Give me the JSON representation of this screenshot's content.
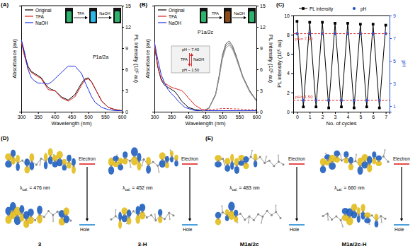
{
  "chart_data": [
    {
      "type": "line",
      "panel_label": "(A)",
      "sample_label": "P1a/2a",
      "x_label": "Wavelength (nm)",
      "y_label": "Absorbance (au)",
      "y2_label": "PL Intensity (10⁵ au)",
      "xlim": [
        300,
        600
      ],
      "xticks": [
        300,
        350,
        400,
        450,
        500,
        550,
        600
      ],
      "ylim": [
        0,
        1
      ],
      "yticks": [],
      "y2lim": [
        0,
        15
      ],
      "y2ticks": [
        0,
        3,
        6,
        9,
        12,
        15
      ],
      "legend": "upper-left",
      "inset": {
        "steps": [
          "TFA",
          "NaOH"
        ],
        "colors": [
          "#2db36b",
          "#2bb8e6",
          "#2db36b"
        ]
      },
      "series": [
        {
          "name": "Original",
          "color": "#000000",
          "x": [
            300,
            310,
            320,
            330,
            340,
            350,
            360,
            370,
            380,
            390,
            400,
            420,
            440,
            460,
            480,
            490,
            500,
            510,
            520,
            540,
            560,
            580,
            600
          ],
          "values": [
            0.68,
            0.54,
            0.43,
            0.38,
            0.36,
            0.34,
            0.32,
            0.27,
            0.23,
            0.21,
            0.2,
            0.14,
            0.11,
            0.16,
            0.27,
            0.31,
            0.32,
            0.28,
            0.22,
            0.1,
            0.04,
            0.02,
            0.01
          ]
        },
        {
          "name": "TFA",
          "color": "#e02020",
          "x": [
            300,
            310,
            320,
            330,
            340,
            350,
            360,
            370,
            380,
            390,
            400,
            420,
            440,
            460,
            480,
            490,
            500,
            510,
            520,
            540,
            560,
            580,
            600
          ],
          "values": [
            0.66,
            0.52,
            0.41,
            0.37,
            0.35,
            0.33,
            0.31,
            0.26,
            0.21,
            0.2,
            0.2,
            0.13,
            0.1,
            0.14,
            0.25,
            0.3,
            0.31,
            0.28,
            0.22,
            0.1,
            0.04,
            0.02,
            0.01
          ]
        },
        {
          "name": "NaOH",
          "color": "#2030e0",
          "x": [
            300,
            310,
            320,
            330,
            340,
            350,
            360,
            370,
            380,
            390,
            400,
            420,
            440,
            460,
            480,
            490,
            500,
            510,
            520,
            540,
            560,
            580,
            600
          ],
          "values": [
            0.68,
            0.56,
            0.4,
            0.32,
            0.29,
            0.27,
            0.27,
            0.27,
            0.26,
            0.28,
            0.31,
            0.37,
            0.43,
            0.43,
            0.36,
            0.28,
            0.21,
            0.14,
            0.09,
            0.04,
            0.02,
            0.01,
            0.01
          ]
        }
      ]
    },
    {
      "type": "line",
      "panel_label": "(B)",
      "sample_label": "P1a/2c",
      "x_label": "Wavelength (nm)",
      "y_label": "Absorbance (au)",
      "y2_label": "PL Intensity (10⁵ au)",
      "xlim": [
        300,
        600
      ],
      "xticks": [
        300,
        350,
        400,
        450,
        500,
        550,
        600
      ],
      "ylim": [
        0,
        1
      ],
      "yticks": [],
      "y2lim": [
        0,
        15
      ],
      "y2ticks": [
        0,
        3,
        6,
        9,
        12,
        15
      ],
      "legend": "upper-left",
      "inset": {
        "steps": [
          "TFA",
          "NaOH"
        ],
        "colors": [
          "#2db36b",
          "#8a4a1a",
          "#2db36b"
        ]
      },
      "ph_switch": {
        "ph_labels": [
          "pH ~ 7.40",
          "pH ~ 1.50"
        ],
        "steps": [
          "TFA",
          "NaOH"
        ]
      },
      "series": [
        {
          "name": "Original",
          "color": "#000000",
          "x": [
            300,
            310,
            320,
            330,
            340,
            350,
            360,
            370,
            380,
            390,
            400,
            420,
            440,
            460,
            500,
            550,
            600
          ],
          "values": [
            0.63,
            0.42,
            0.3,
            0.25,
            0.23,
            0.21,
            0.19,
            0.15,
            0.1,
            0.07,
            0.04,
            0.02,
            0.01,
            0.01,
            0.01,
            0.01,
            0.01
          ]
        },
        {
          "name": "TFA",
          "color": "#e02020",
          "x": [
            300,
            310,
            320,
            330,
            340,
            350,
            360,
            370,
            380,
            390,
            400,
            420,
            440,
            460,
            500,
            550,
            600
          ],
          "values": [
            0.63,
            0.43,
            0.31,
            0.27,
            0.25,
            0.23,
            0.22,
            0.21,
            0.2,
            0.17,
            0.13,
            0.06,
            0.02,
            0.01,
            0.01,
            0.01,
            0.01
          ]
        },
        {
          "name": "NaOH",
          "color": "#2030e0",
          "x": [
            300,
            310,
            320,
            330,
            340,
            350,
            360,
            370,
            380,
            390,
            400,
            420,
            440,
            460,
            500,
            550,
            600
          ],
          "values": [
            0.66,
            0.49,
            0.35,
            0.27,
            0.21,
            0.17,
            0.14,
            0.1,
            0.07,
            0.04,
            0.03,
            0.01,
            0.01,
            0.01,
            0.01,
            0.01,
            0.01
          ]
        },
        {
          "color": "#555555",
          "axis": "y2",
          "x": [
            440,
            460,
            480,
            490,
            500,
            510,
            520,
            530,
            540,
            560,
            580,
            600
          ],
          "values": [
            0.1,
            0.5,
            2.5,
            5,
            8,
            9.6,
            10,
            9.3,
            8,
            5,
            3,
            1.6
          ]
        },
        {
          "color": "#777777",
          "axis": "y2",
          "x": [
            440,
            460,
            480,
            490,
            500,
            510,
            520,
            530,
            540,
            560,
            580,
            600
          ],
          "values": [
            0.1,
            0.5,
            2.4,
            4.8,
            7.7,
            9.3,
            9.7,
            9,
            7.8,
            4.9,
            2.9,
            1.5
          ]
        },
        {
          "color": "#999999",
          "axis": "y2",
          "x": [
            440,
            460,
            480,
            490,
            500,
            510,
            520,
            530,
            540,
            560,
            580,
            600
          ],
          "values": [
            0.1,
            0.4,
            2.3,
            4.6,
            7.4,
            9,
            9.4,
            8.8,
            7.6,
            4.8,
            2.8,
            1.5
          ]
        },
        {
          "color": "#e03030",
          "axis": "y2",
          "line_style": "dashed",
          "x": [
            440,
            460,
            480,
            490,
            500,
            510,
            520,
            530,
            540,
            560,
            580,
            600
          ],
          "values": [
            0.3,
            0.3,
            0.35,
            0.4,
            0.45,
            0.45,
            0.45,
            0.4,
            0.4,
            0.35,
            0.3,
            0.3
          ]
        }
      ]
    },
    {
      "type": "line",
      "panel_label": "(C)",
      "x_label": "No. of cycles",
      "y_label": "PL intensity (10⁵ au)",
      "y2_label": "pH",
      "x": [
        0,
        0.5,
        1,
        1.5,
        2,
        2.5,
        3,
        3.5,
        4,
        4.5,
        5,
        5.5,
        6,
        6.5,
        7
      ],
      "xlim": [
        -0.3,
        7.3
      ],
      "xticks": [
        0,
        1,
        2,
        3,
        4,
        5,
        6,
        7
      ],
      "ylim": [
        0,
        10
      ],
      "yticks": [
        0,
        2,
        4,
        6,
        8,
        10
      ],
      "y2lim": [
        0.5,
        9
      ],
      "y2ticks": [
        1,
        3,
        5,
        7,
        9
      ],
      "legend": "top",
      "series": [
        {
          "name": "PL intensity",
          "color": "#000000",
          "marker": "square",
          "line_style": "solid",
          "values": [
            9.4,
            0.5,
            9.3,
            0.5,
            9.3,
            0.4,
            9.2,
            0.5,
            9.2,
            0.4,
            9.1,
            0.5,
            9.1,
            0.4,
            9.0
          ]
        },
        {
          "name": "pH",
          "color": "#1f4fd0",
          "marker": "circle",
          "line_style": "none",
          "axis": "y2",
          "values": [
            7.4,
            1.5,
            7.4,
            1.5,
            7.4,
            1.5,
            7.4,
            1.5,
            7.4,
            1.5,
            7.4,
            1.5,
            7.4,
            1.5,
            7.4
          ]
        }
      ],
      "annotations": [
        {
          "text": "pH= 7.40",
          "value": 7.4,
          "axis": "y2"
        },
        {
          "text": "pH= 1.50",
          "value": 1.5,
          "axis": "y2"
        }
      ]
    }
  ],
  "diagrams": [
    {
      "panel_label": "(D)",
      "electron_label": "Electron",
      "hole_label": "Hole",
      "lambda_symbol": "λ",
      "lambda_subscript": "cal.",
      "molecules": [
        {
          "name": "3",
          "wavelength_label": "= 476 nm"
        },
        {
          "name": "3-H",
          "wavelength_label": "= 452 nm"
        }
      ]
    },
    {
      "panel_label": "(E)",
      "electron_label": "Electron",
      "hole_label": "Hole",
      "lambda_symbol": "λ",
      "lambda_subscript": "cal.",
      "molecules": [
        {
          "name": "M1a/2c",
          "wavelength_label": "= 483 nm"
        },
        {
          "name": "M1a/2c-H",
          "wavelength_label": "= 660 nm"
        }
      ]
    }
  ]
}
